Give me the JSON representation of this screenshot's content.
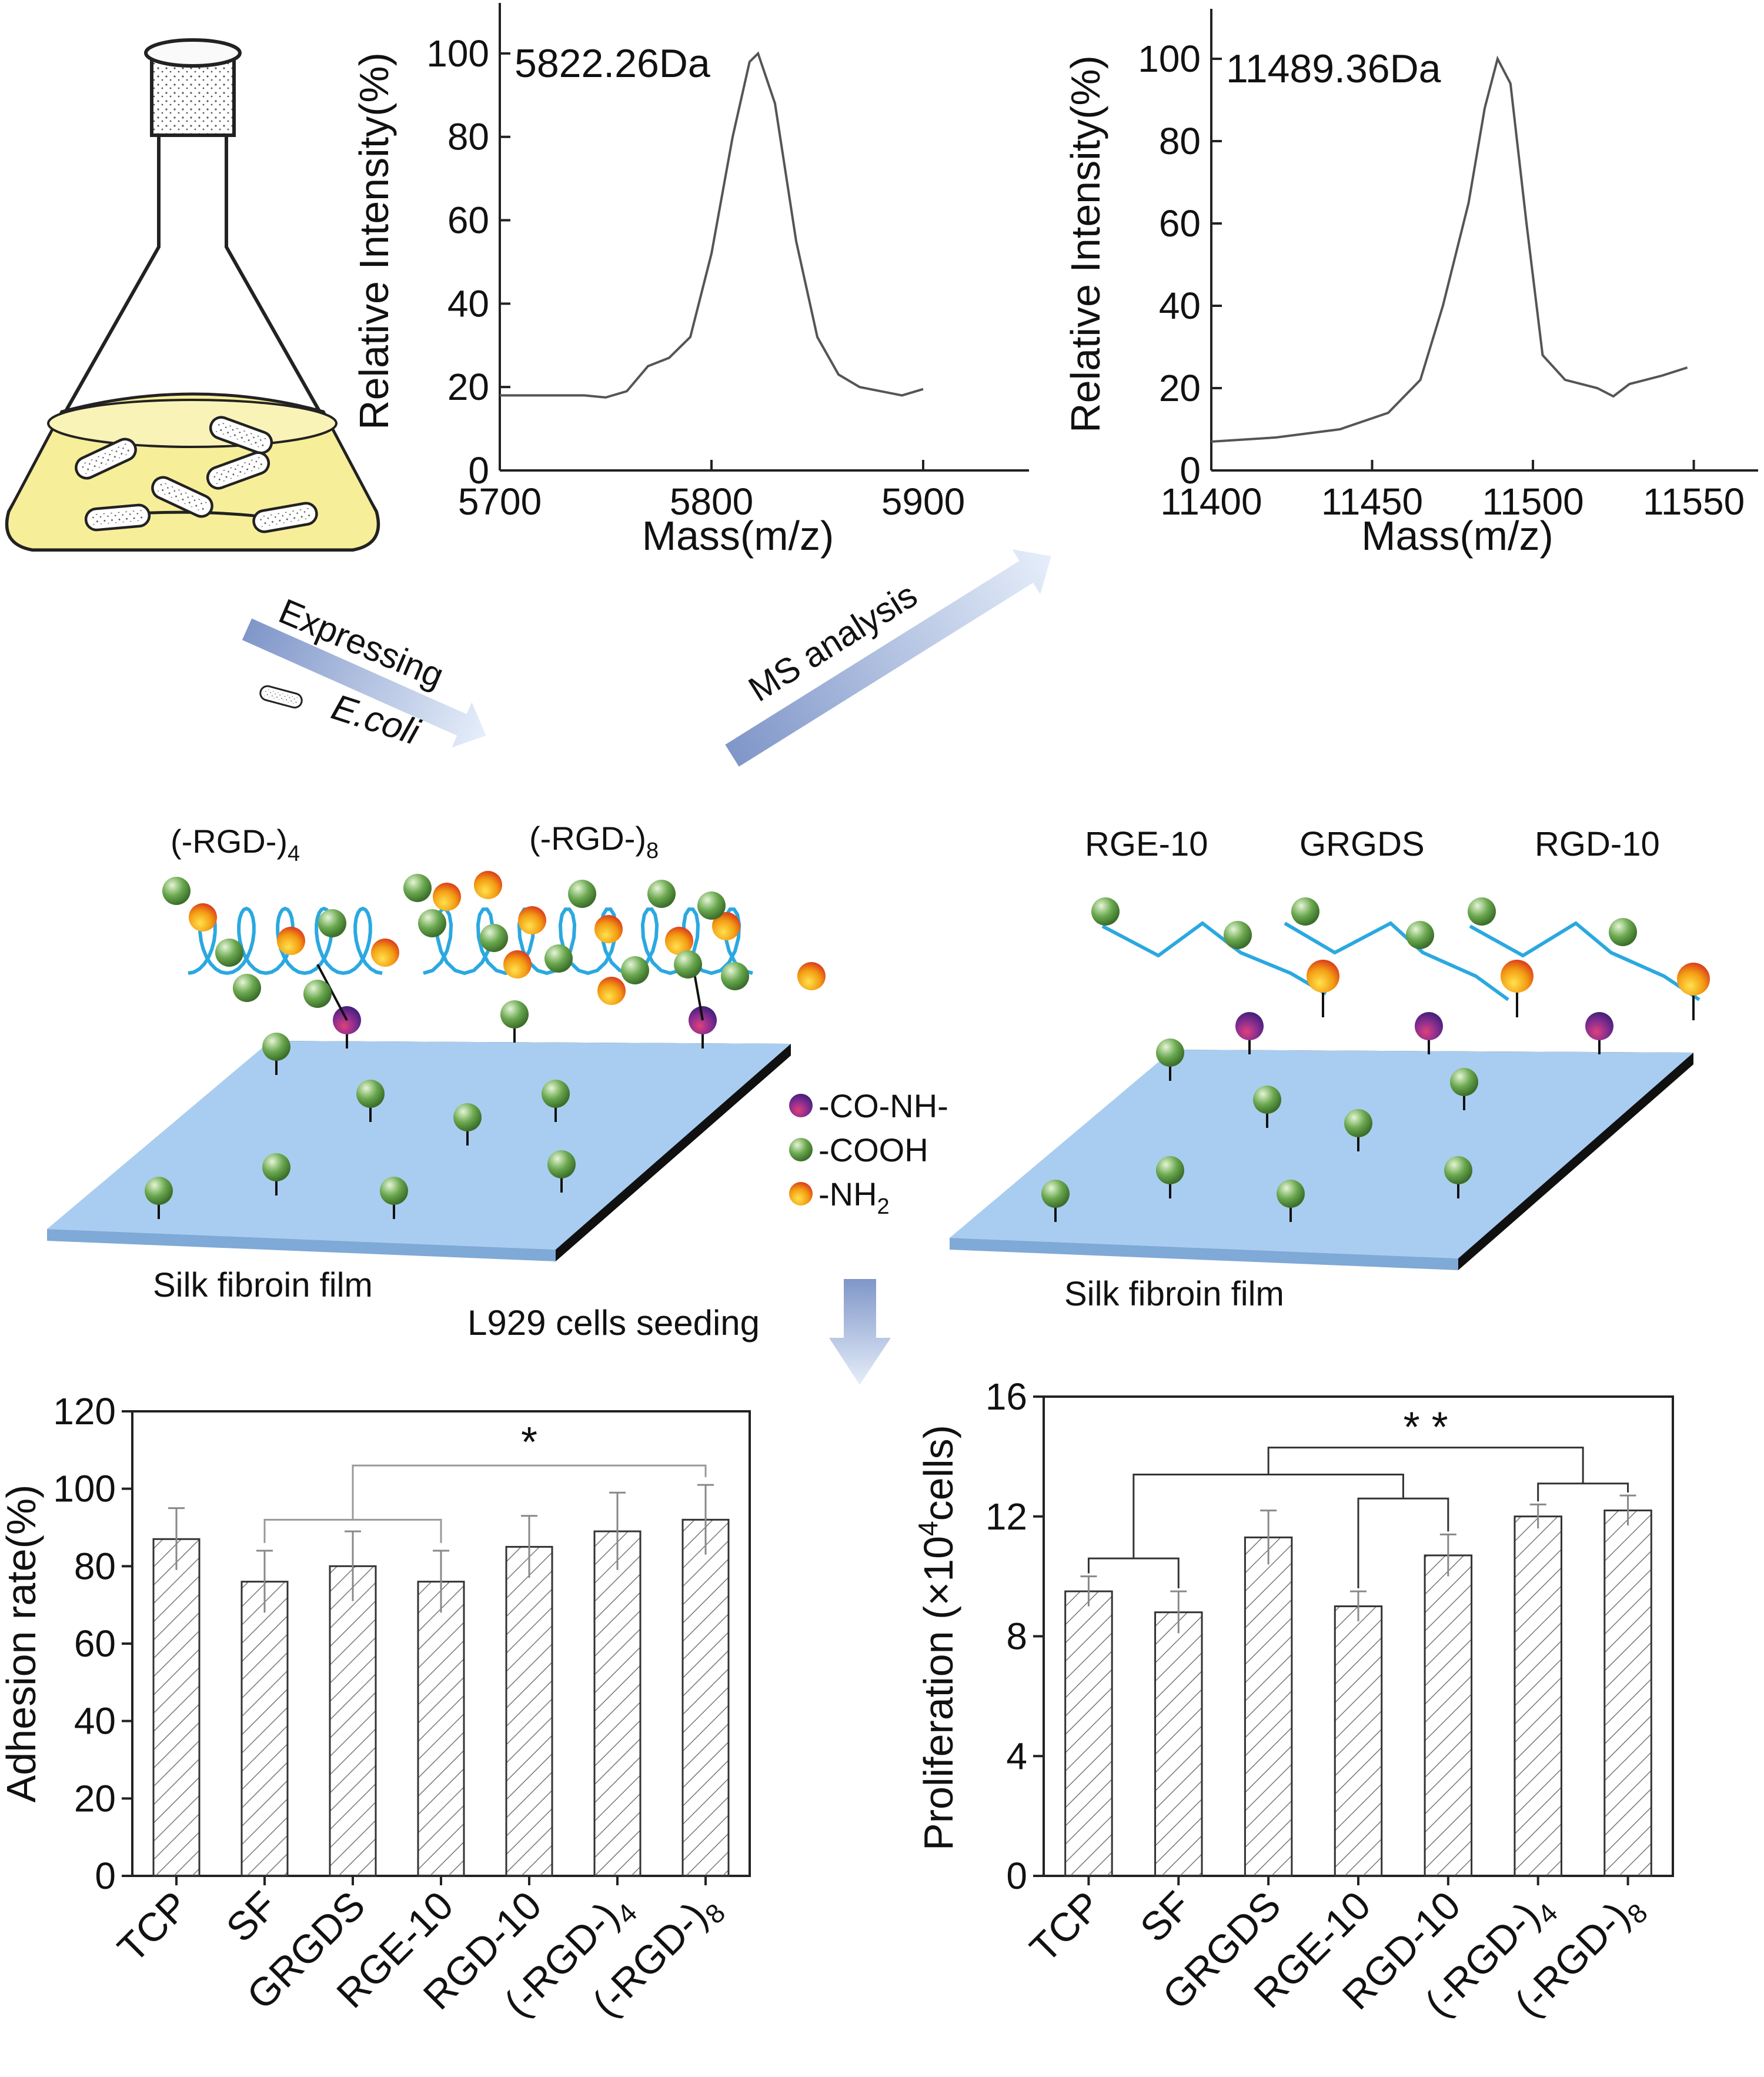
{
  "flow": {
    "expressing_label": "Expressing",
    "ecoli_label": "E.coli",
    "ms_label": "MS analysis",
    "seeding_label": "L929 cells seeding"
  },
  "film_left": {
    "title": "Silk fibroin film",
    "peptide_a_base": "(-RGD-)",
    "peptide_a_sub": "4",
    "peptide_b_base": "(-RGD-)",
    "peptide_b_sub": "8"
  },
  "film_right": {
    "title": "Silk fibroin film",
    "peptide_1": "RGE-10",
    "peptide_2": "GRGDS",
    "peptide_3": "RGD-10"
  },
  "legend": {
    "item_1": "-CO-NH-",
    "item_2": "-COOH",
    "item_3_base": "-NH",
    "item_3_sub": "2"
  },
  "colors": {
    "bar_hatch": "#777777",
    "line": "#555555",
    "film_top": "#a9cdf0",
    "sphere_green": "#6aa84f",
    "sphere_orange": "#f39c12",
    "sphere_purple": "#6a2f8f",
    "helix": "#2ba8e0",
    "broth": "#f7ee9a"
  },
  "chart_data": [
    {
      "type": "line",
      "title": "5822.26Da",
      "xlabel": "Mass(m/z)",
      "ylabel": "Relative Intensity(%)",
      "xlim": [
        5700,
        5950
      ],
      "ylim": [
        0,
        110
      ],
      "xticks": [
        "5700",
        "5800",
        "5900"
      ],
      "yticks": [
        "0",
        "20",
        "40",
        "60",
        "80",
        "100"
      ],
      "peak_label": "5822.26Da",
      "x": [
        5700,
        5720,
        5740,
        5750,
        5760,
        5770,
        5780,
        5790,
        5800,
        5810,
        5818,
        5822,
        5830,
        5840,
        5850,
        5860,
        5870,
        5880,
        5890,
        5900
      ],
      "y": [
        18,
        18,
        18,
        17.5,
        19,
        25,
        27,
        32,
        52,
        80,
        98,
        100,
        88,
        55,
        32,
        23,
        20,
        19,
        18,
        19.5
      ]
    },
    {
      "type": "line",
      "title": "11489.36Da",
      "xlabel": "Mass(m/z)",
      "ylabel": "Relative Intensity(%)",
      "xlim": [
        11400,
        11570
      ],
      "ylim": [
        0,
        110
      ],
      "xticks": [
        "11400",
        "11450",
        "11500",
        "11550"
      ],
      "yticks": [
        "0",
        "20",
        "40",
        "60",
        "80",
        "100"
      ],
      "peak_label": "11489.36Da",
      "x": [
        11400,
        11420,
        11440,
        11455,
        11465,
        11472,
        11480,
        11485,
        11489,
        11493,
        11498,
        11503,
        11510,
        11520,
        11525,
        11530,
        11540,
        11548
      ],
      "y": [
        7,
        8,
        10,
        14,
        22,
        40,
        65,
        88,
        100,
        94,
        60,
        28,
        22,
        20,
        18,
        21,
        23,
        25
      ]
    },
    {
      "type": "bar",
      "ylabel": "Adhesion rate(%)",
      "ylim": [
        0,
        120
      ],
      "yticks": [
        "0",
        "20",
        "40",
        "60",
        "80",
        "100",
        "120"
      ],
      "categories": [
        "TCP",
        "SF",
        "GRGDS",
        "RGE-10",
        "RGD-10",
        "(-RGD-)4",
        "(-RGD-)8"
      ],
      "category_bases": [
        "TCP",
        "SF",
        "GRGDS",
        "RGE-10",
        "RGD-10",
        "(-RGD-)",
        "(-RGD-)"
      ],
      "category_subs": [
        "",
        "",
        "",
        "",
        "",
        "4",
        "8"
      ],
      "values": [
        87,
        76,
        80,
        76,
        85,
        89,
        92
      ],
      "errors": [
        8,
        8,
        9,
        8,
        8,
        10,
        9
      ],
      "significance": "*"
    },
    {
      "type": "bar",
      "ylabel_base": "Proliferation (×10",
      "ylabel_sup": "4",
      "ylabel_tail": "cells)",
      "ylim": [
        0,
        16
      ],
      "yticks": [
        "0",
        "4",
        "8",
        "12",
        "16"
      ],
      "categories": [
        "TCP",
        "SF",
        "GRGDS",
        "RGE-10",
        "RGD-10",
        "(-RGD-)4",
        "(-RGD-)8"
      ],
      "category_bases": [
        "TCP",
        "SF",
        "GRGDS",
        "RGE-10",
        "RGD-10",
        "(-RGD-)",
        "(-RGD-)"
      ],
      "category_subs": [
        "",
        "",
        "",
        "",
        "",
        "4",
        "8"
      ],
      "values": [
        9.5,
        8.8,
        11.3,
        9.0,
        10.7,
        12.0,
        12.2
      ],
      "errors": [
        0.5,
        0.7,
        0.9,
        0.5,
        0.7,
        0.4,
        0.5
      ],
      "significance": "* *"
    }
  ]
}
